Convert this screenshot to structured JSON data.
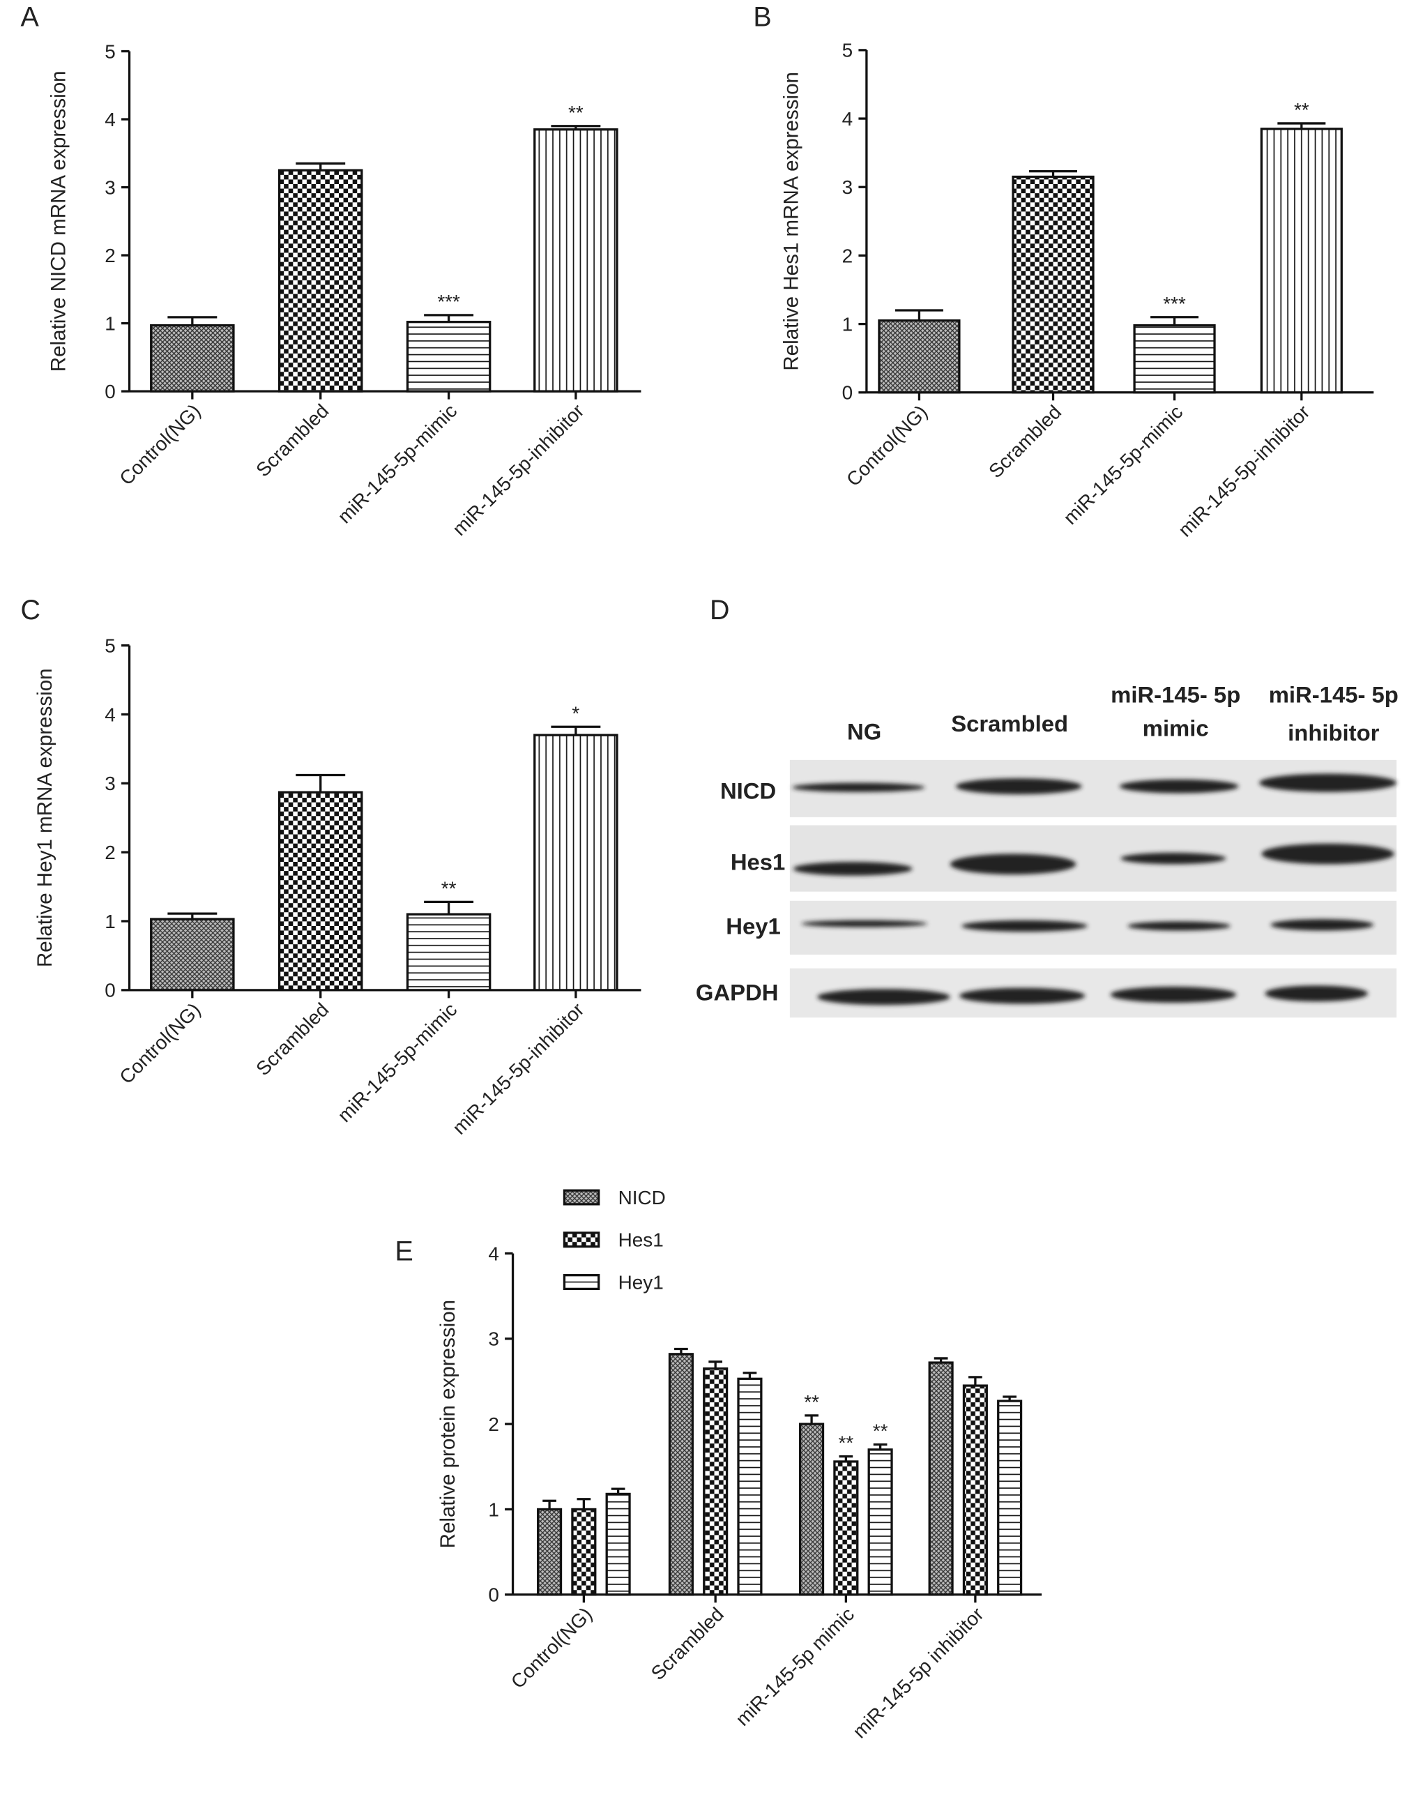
{
  "chart_data": [
    {
      "type": "bar",
      "panel": "A",
      "ylabel": "Relative  NICD  mRNA expression",
      "categories": [
        "Control(NG)",
        "Scrambled",
        "miR-145-5p-mimic",
        "miR-145-5p-inhibitor"
      ],
      "values": [
        0.97,
        3.25,
        1.02,
        3.85
      ],
      "errors": [
        0.12,
        0.1,
        0.1,
        0.05
      ],
      "annotations": [
        null,
        null,
        "***",
        "**"
      ],
      "patterns": [
        "crosshatch",
        "checker",
        "hlines",
        "vlines"
      ],
      "ylim": [
        0,
        5
      ],
      "yticks": [
        0,
        1,
        2,
        3,
        4,
        5
      ]
    },
    {
      "type": "bar",
      "panel": "B",
      "ylabel": "Relative  Hes1 mRNA expression",
      "categories": [
        "Control(NG)",
        "Scrambled",
        "miR-145-5p-mimic",
        "miR-145-5p-inhibitor"
      ],
      "values": [
        1.05,
        3.15,
        0.98,
        3.85
      ],
      "errors": [
        0.15,
        0.08,
        0.12,
        0.08
      ],
      "annotations": [
        null,
        null,
        "***",
        "**"
      ],
      "patterns": [
        "crosshatch",
        "checker",
        "hlines",
        "vlines"
      ],
      "ylim": [
        0,
        5
      ],
      "yticks": [
        0,
        1,
        2,
        3,
        4,
        5
      ]
    },
    {
      "type": "bar",
      "panel": "C",
      "ylabel": "Relative  Hey1 mRNA expression",
      "categories": [
        "Control(NG)",
        "Scrambled",
        "miR-145-5p-mimic",
        "miR-145-5p-inhibitor"
      ],
      "values": [
        1.03,
        2.87,
        1.1,
        3.7
      ],
      "errors": [
        0.08,
        0.25,
        0.18,
        0.12
      ],
      "annotations": [
        null,
        null,
        "**",
        "*"
      ],
      "patterns": [
        "crosshatch",
        "checker",
        "hlines",
        "vlines"
      ],
      "ylim": [
        0,
        5
      ],
      "yticks": [
        0,
        1,
        2,
        3,
        4,
        5
      ]
    },
    {
      "type": "grouped_bar",
      "panel": "E",
      "ylabel": "Relative protein expression",
      "categories": [
        "Control(NG)",
        "Scrambled",
        "miR-145-5p mimic",
        "miR-145-5p inhibitor"
      ],
      "series": [
        {
          "name": "NICD",
          "pattern": "crosshatch",
          "values": [
            1.0,
            2.82,
            2.0,
            2.72
          ],
          "errors": [
            0.1,
            0.06,
            0.1,
            0.05
          ],
          "annotations": [
            null,
            null,
            "**",
            null
          ]
        },
        {
          "name": "Hes1",
          "pattern": "checker",
          "values": [
            1.0,
            2.65,
            1.56,
            2.45
          ],
          "errors": [
            0.12,
            0.08,
            0.06,
            0.1
          ],
          "annotations": [
            null,
            null,
            "**",
            null
          ]
        },
        {
          "name": "Hey1",
          "pattern": "hlines",
          "values": [
            1.18,
            2.53,
            1.7,
            2.27
          ],
          "errors": [
            0.06,
            0.07,
            0.06,
            0.05
          ],
          "annotations": [
            null,
            null,
            "**",
            null
          ]
        }
      ],
      "ylim": [
        0,
        4
      ],
      "yticks": [
        0,
        1,
        2,
        3,
        4
      ]
    }
  ],
  "blot": {
    "panel": "D",
    "columns": [
      [
        "NG"
      ],
      [
        "Scrambled"
      ],
      [
        "miR-145- 5p",
        "mimic"
      ],
      [
        "miR-145- 5p",
        "inhibitor"
      ]
    ],
    "rows": [
      "NICD",
      "Hes1",
      "Hey1",
      "GAPDH"
    ]
  }
}
